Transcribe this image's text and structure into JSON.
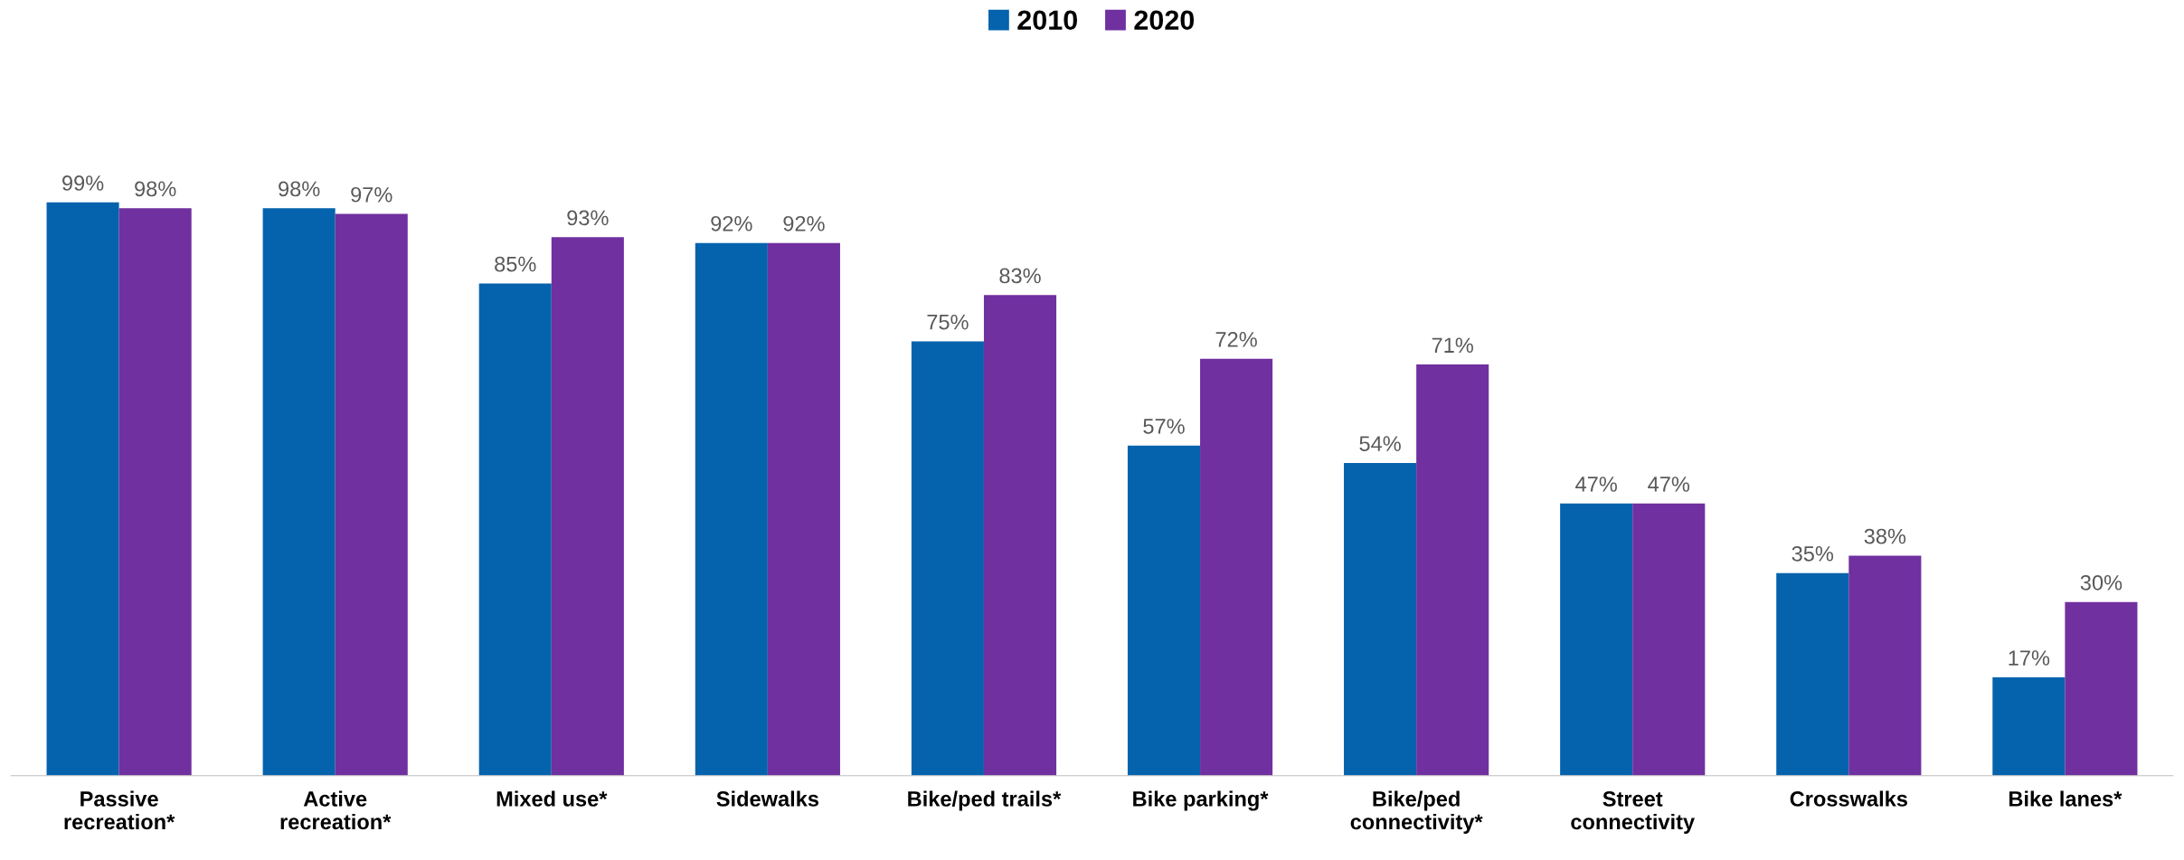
{
  "chart_data": {
    "type": "bar",
    "categories": [
      "Passive\nrecreation*",
      "Active\nrecreation*",
      "Mixed use*",
      "Sidewalks",
      "Bike/ped trails*",
      "Bike parking*",
      "Bike/ped\nconnectivity*",
      "Street\nconnectivity",
      "Crosswalks",
      "Bike lanes*"
    ],
    "series": [
      {
        "name": "2010",
        "color": "#0563ad",
        "values": [
          99,
          98,
          85,
          92,
          75,
          57,
          54,
          47,
          35,
          17
        ],
        "value_labels": [
          "99%",
          "98%",
          "85%",
          "92%",
          "75%",
          "57%",
          "54%",
          "47%",
          "35%",
          "17%"
        ]
      },
      {
        "name": "2020",
        "color": "#7030a0",
        "values": [
          98,
          97,
          93,
          92,
          83,
          72,
          71,
          47,
          38,
          30
        ],
        "value_labels": [
          "98%",
          "97%",
          "93%",
          "92%",
          "83%",
          "72%",
          "71%",
          "47%",
          "38%",
          "30%"
        ]
      }
    ],
    "legend": "top",
    "tick_labels": "x",
    "grid": false
  }
}
